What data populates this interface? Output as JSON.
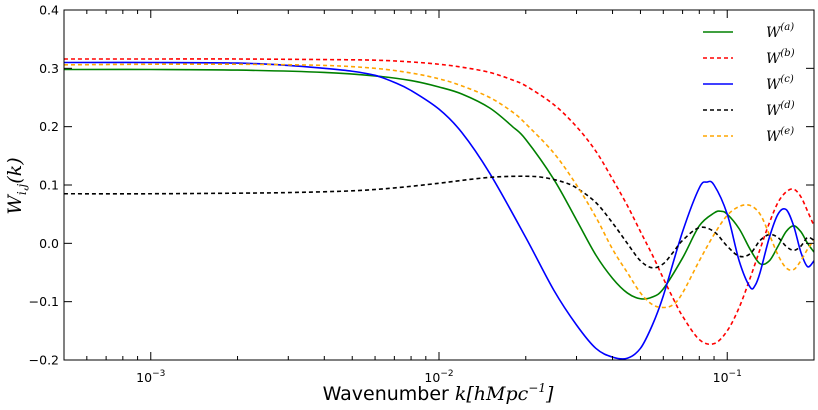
{
  "chart_data": {
    "type": "line",
    "title": "",
    "xlabel": "Wavenumber",
    "xlabel_math": "k[hMpc",
    "xlabel_math_sup": "−1",
    "xlabel_math_close": "]",
    "ylabel_math": "W",
    "ylabel_sub": "i,j",
    "ylabel_arg": "(k)",
    "xscale": "log",
    "xlim": [
      0.0005,
      0.2
    ],
    "ylim": [
      -0.2,
      0.4
    ],
    "grid": false,
    "legend_position": "top-right",
    "y_ticks": [
      {
        "value": -0.2,
        "label": "−0.2"
      },
      {
        "value": -0.1,
        "label": "−0.1"
      },
      {
        "value": 0.0,
        "label": "0.0"
      },
      {
        "value": 0.1,
        "label": "0.1"
      },
      {
        "value": 0.2,
        "label": "0.2"
      },
      {
        "value": 0.3,
        "label": "0.3"
      },
      {
        "value": 0.4,
        "label": "0.4"
      }
    ],
    "x_ticks": [
      {
        "value": 0.001,
        "base": "10",
        "exp": "−3"
      },
      {
        "value": 0.01,
        "base": "10",
        "exp": "−2"
      },
      {
        "value": 0.1,
        "base": "10",
        "exp": "−1"
      }
    ],
    "series": [
      {
        "name": "W",
        "sup": "(a)",
        "color": "#008000",
        "dash": "solid",
        "points": [
          [
            0.0005,
            0.298
          ],
          [
            0.001,
            0.298
          ],
          [
            0.002,
            0.297
          ],
          [
            0.004,
            0.293
          ],
          [
            0.006,
            0.287
          ],
          [
            0.008,
            0.279
          ],
          [
            0.01,
            0.268
          ],
          [
            0.012,
            0.256
          ],
          [
            0.015,
            0.232
          ],
          [
            0.018,
            0.2
          ],
          [
            0.02,
            0.178
          ],
          [
            0.025,
            0.11
          ],
          [
            0.03,
            0.04
          ],
          [
            0.035,
            -0.02
          ],
          [
            0.04,
            -0.06
          ],
          [
            0.045,
            -0.085
          ],
          [
            0.05,
            -0.095
          ],
          [
            0.055,
            -0.092
          ],
          [
            0.06,
            -0.078
          ],
          [
            0.07,
            -0.025
          ],
          [
            0.08,
            0.03
          ],
          [
            0.09,
            0.052
          ],
          [
            0.095,
            0.055
          ],
          [
            0.1,
            0.05
          ],
          [
            0.11,
            0.025
          ],
          [
            0.12,
            -0.01
          ],
          [
            0.13,
            -0.035
          ],
          [
            0.14,
            -0.03
          ],
          [
            0.15,
            -0.005
          ],
          [
            0.16,
            0.02
          ],
          [
            0.17,
            0.03
          ],
          [
            0.18,
            0.02
          ],
          [
            0.19,
            0.0
          ],
          [
            0.2,
            -0.015
          ]
        ]
      },
      {
        "name": "W",
        "sup": "(b)",
        "color": "#ff0000",
        "dash": "dashed",
        "points": [
          [
            0.0005,
            0.316
          ],
          [
            0.001,
            0.316
          ],
          [
            0.002,
            0.316
          ],
          [
            0.004,
            0.315
          ],
          [
            0.006,
            0.314
          ],
          [
            0.008,
            0.311
          ],
          [
            0.01,
            0.307
          ],
          [
            0.012,
            0.302
          ],
          [
            0.015,
            0.293
          ],
          [
            0.018,
            0.28
          ],
          [
            0.02,
            0.27
          ],
          [
            0.025,
            0.238
          ],
          [
            0.03,
            0.2
          ],
          [
            0.035,
            0.158
          ],
          [
            0.04,
            0.11
          ],
          [
            0.045,
            0.065
          ],
          [
            0.05,
            0.02
          ],
          [
            0.055,
            -0.02
          ],
          [
            0.06,
            -0.06
          ],
          [
            0.065,
            -0.095
          ],
          [
            0.07,
            -0.125
          ],
          [
            0.08,
            -0.165
          ],
          [
            0.09,
            -0.172
          ],
          [
            0.1,
            -0.15
          ],
          [
            0.11,
            -0.11
          ],
          [
            0.12,
            -0.06
          ],
          [
            0.13,
            -0.01
          ],
          [
            0.14,
            0.035
          ],
          [
            0.15,
            0.07
          ],
          [
            0.16,
            0.088
          ],
          [
            0.17,
            0.093
          ],
          [
            0.18,
            0.08
          ],
          [
            0.19,
            0.055
          ],
          [
            0.2,
            0.03
          ]
        ]
      },
      {
        "name": "W",
        "sup": "(c)",
        "color": "#0000ff",
        "dash": "solid",
        "points": [
          [
            0.0005,
            0.31
          ],
          [
            0.001,
            0.31
          ],
          [
            0.002,
            0.309
          ],
          [
            0.003,
            0.305
          ],
          [
            0.004,
            0.3
          ],
          [
            0.005,
            0.295
          ],
          [
            0.006,
            0.288
          ],
          [
            0.007,
            0.276
          ],
          [
            0.008,
            0.262
          ],
          [
            0.01,
            0.23
          ],
          [
            0.012,
            0.19
          ],
          [
            0.015,
            0.12
          ],
          [
            0.02,
            0.01
          ],
          [
            0.025,
            -0.08
          ],
          [
            0.03,
            -0.14
          ],
          [
            0.035,
            -0.18
          ],
          [
            0.04,
            -0.195
          ],
          [
            0.045,
            -0.197
          ],
          [
            0.05,
            -0.18
          ],
          [
            0.055,
            -0.14
          ],
          [
            0.06,
            -0.09
          ],
          [
            0.07,
            0.02
          ],
          [
            0.08,
            0.095
          ],
          [
            0.085,
            0.105
          ],
          [
            0.09,
            0.1
          ],
          [
            0.1,
            0.05
          ],
          [
            0.11,
            -0.03
          ],
          [
            0.12,
            -0.075
          ],
          [
            0.125,
            -0.072
          ],
          [
            0.13,
            -0.05
          ],
          [
            0.14,
            0.01
          ],
          [
            0.15,
            0.05
          ],
          [
            0.16,
            0.058
          ],
          [
            0.17,
            0.03
          ],
          [
            0.18,
            -0.015
          ],
          [
            0.19,
            -0.04
          ],
          [
            0.2,
            -0.03
          ]
        ]
      },
      {
        "name": "W",
        "sup": "(d)",
        "color": "#000000",
        "dash": "dashed",
        "points": [
          [
            0.0005,
            0.085
          ],
          [
            0.001,
            0.085
          ],
          [
            0.002,
            0.086
          ],
          [
            0.003,
            0.087
          ],
          [
            0.005,
            0.09
          ],
          [
            0.007,
            0.095
          ],
          [
            0.01,
            0.103
          ],
          [
            0.013,
            0.11
          ],
          [
            0.016,
            0.114
          ],
          [
            0.02,
            0.115
          ],
          [
            0.023,
            0.113
          ],
          [
            0.027,
            0.105
          ],
          [
            0.03,
            0.095
          ],
          [
            0.035,
            0.07
          ],
          [
            0.04,
            0.035
          ],
          [
            0.045,
            0.0
          ],
          [
            0.05,
            -0.03
          ],
          [
            0.055,
            -0.042
          ],
          [
            0.06,
            -0.035
          ],
          [
            0.065,
            -0.015
          ],
          [
            0.07,
            0.005
          ],
          [
            0.08,
            0.027
          ],
          [
            0.09,
            0.02
          ],
          [
            0.1,
            -0.005
          ],
          [
            0.11,
            -0.022
          ],
          [
            0.12,
            -0.018
          ],
          [
            0.13,
            0.005
          ],
          [
            0.14,
            0.015
          ],
          [
            0.15,
            0.01
          ],
          [
            0.16,
            -0.005
          ],
          [
            0.17,
            -0.012
          ],
          [
            0.18,
            -0.005
          ],
          [
            0.19,
            0.01
          ],
          [
            0.2,
            0.005
          ]
        ]
      },
      {
        "name": "W",
        "sup": "(e)",
        "color": "#ffa500",
        "dash": "dashed",
        "points": [
          [
            0.0005,
            0.306
          ],
          [
            0.001,
            0.307
          ],
          [
            0.002,
            0.307
          ],
          [
            0.004,
            0.305
          ],
          [
            0.006,
            0.3
          ],
          [
            0.008,
            0.292
          ],
          [
            0.01,
            0.282
          ],
          [
            0.012,
            0.27
          ],
          [
            0.015,
            0.25
          ],
          [
            0.018,
            0.225
          ],
          [
            0.02,
            0.205
          ],
          [
            0.025,
            0.155
          ],
          [
            0.03,
            0.1
          ],
          [
            0.035,
            0.045
          ],
          [
            0.04,
            -0.01
          ],
          [
            0.045,
            -0.05
          ],
          [
            0.05,
            -0.085
          ],
          [
            0.055,
            -0.105
          ],
          [
            0.06,
            -0.11
          ],
          [
            0.065,
            -0.105
          ],
          [
            0.07,
            -0.085
          ],
          [
            0.08,
            -0.03
          ],
          [
            0.09,
            0.015
          ],
          [
            0.1,
            0.048
          ],
          [
            0.11,
            0.063
          ],
          [
            0.12,
            0.065
          ],
          [
            0.13,
            0.05
          ],
          [
            0.14,
            0.015
          ],
          [
            0.15,
            -0.02
          ],
          [
            0.16,
            -0.042
          ],
          [
            0.17,
            -0.045
          ],
          [
            0.18,
            -0.03
          ],
          [
            0.19,
            -0.01
          ],
          [
            0.2,
            0.005
          ]
        ]
      }
    ]
  }
}
